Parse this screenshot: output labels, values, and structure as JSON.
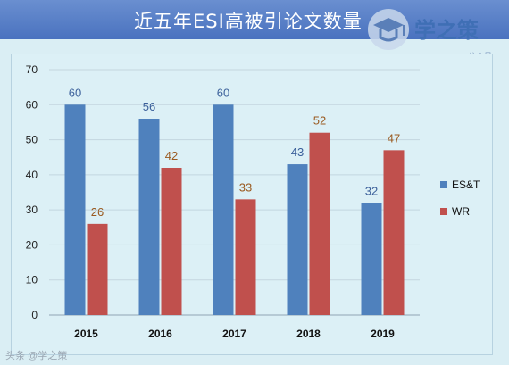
{
  "header": {
    "title": "近五年ESI高被引论文数量",
    "logo_text": "学之策",
    "logo_subtitle": "公众号"
  },
  "watermark": {
    "text": "头条 @学之策"
  },
  "colors": {
    "est": "#4f81bd",
    "wr": "#c0504d",
    "est_label": "#3a5f9a",
    "wr_label": "#9a5a20"
  },
  "chart_data": {
    "type": "bar",
    "title": "近五年ESI高被引论文数量",
    "categories": [
      "2015",
      "2016",
      "2017",
      "2018",
      "2019"
    ],
    "series": [
      {
        "name": "ES&T",
        "values": [
          60,
          56,
          60,
          43,
          32
        ]
      },
      {
        "name": "WR",
        "values": [
          26,
          42,
          33,
          52,
          47
        ]
      }
    ],
    "yticks": [
      "0",
      "10",
      "20",
      "30",
      "40",
      "50",
      "60",
      "70"
    ],
    "ylim": [
      0,
      70
    ],
    "grid": true,
    "legend": "right"
  }
}
